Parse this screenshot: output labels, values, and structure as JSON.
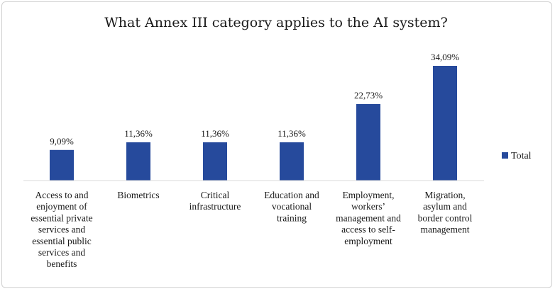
{
  "chart_data": {
    "type": "bar",
    "title": "What Annex III category applies to the AI system?",
    "categories": [
      [
        "Access to and",
        "enjoyment of",
        "essential private",
        "services and",
        "essential public",
        "services and",
        "benefits"
      ],
      [
        "Biometrics"
      ],
      [
        "Critical",
        "infrastructure"
      ],
      [
        "Education and",
        "vocational",
        "training"
      ],
      [
        "Employment,",
        "workers’",
        "management and",
        "access to self-",
        "employment"
      ],
      [
        "Migration,",
        "asylum and",
        "border control",
        "management"
      ]
    ],
    "series": [
      {
        "name": "Total",
        "values": [
          9.09,
          11.36,
          11.36,
          11.36,
          22.73,
          34.09
        ]
      }
    ],
    "value_labels": [
      "9,09%",
      "11,36%",
      "11,36%",
      "11,36%",
      "22,73%",
      "34,09%"
    ],
    "ylim": [
      0,
      34.09
    ],
    "grid": false,
    "legend_position": "right",
    "bar_color": "#264a9c"
  }
}
